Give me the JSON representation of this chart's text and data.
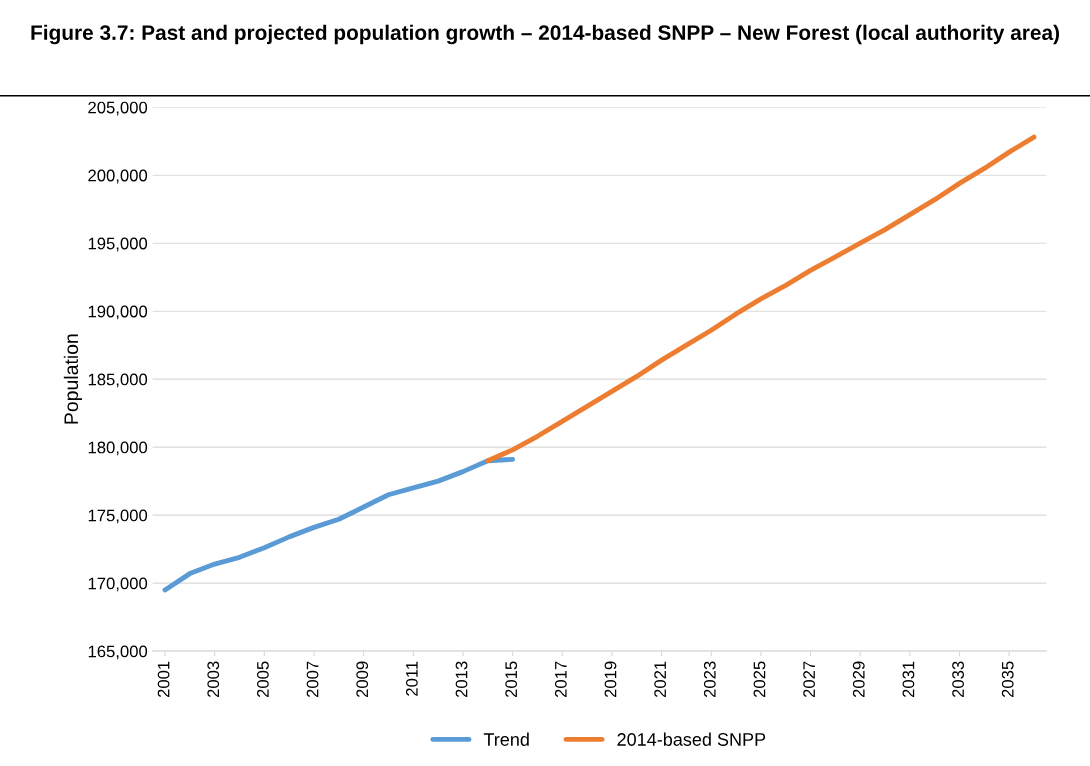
{
  "chart_data": {
    "type": "line",
    "title": "Figure 3.7: Past and projected population growth – 2014-based SNPP – New Forest (local authority area)",
    "ylabel": "Population",
    "xlim": [
      2000.5,
      2036.5
    ],
    "xticks": [
      2001,
      2003,
      2005,
      2007,
      2009,
      2011,
      2013,
      2015,
      2017,
      2019,
      2021,
      2023,
      2025,
      2027,
      2029,
      2031,
      2033,
      2035
    ],
    "ylim": [
      165000,
      205000
    ],
    "yticks": [
      {
        "value": 165000,
        "label": "165,000"
      },
      {
        "value": 170000,
        "label": "170,000"
      },
      {
        "value": 175000,
        "label": "175,000"
      },
      {
        "value": 180000,
        "label": "180,000"
      },
      {
        "value": 185000,
        "label": "185,000"
      },
      {
        "value": 190000,
        "label": "190,000"
      },
      {
        "value": 195000,
        "label": "195,000"
      },
      {
        "value": 200000,
        "label": "200,000"
      },
      {
        "value": 205000,
        "label": "205,000"
      }
    ],
    "grid": "y",
    "legend": "bottom",
    "marker": "none",
    "line_style": "solid",
    "series": [
      {
        "name": "Trend",
        "color": "#5b9bd5",
        "x": [
          2001,
          2002,
          2003,
          2004,
          2005,
          2006,
          2007,
          2008,
          2009,
          2010,
          2011,
          2012,
          2013,
          2014,
          2015
        ],
        "values": [
          169500,
          170700,
          171400,
          171900,
          172600,
          173400,
          174100,
          174700,
          175600,
          176500,
          177000,
          177500,
          178200,
          179000,
          179100
        ]
      },
      {
        "name": "2014-based SNPP",
        "color": "#ed7d31",
        "x": [
          2014,
          2015,
          2016,
          2017,
          2018,
          2019,
          2020,
          2021,
          2022,
          2023,
          2024,
          2025,
          2026,
          2027,
          2028,
          2029,
          2030,
          2031,
          2032,
          2033,
          2034,
          2035,
          2036
        ],
        "values": [
          179000,
          179800,
          180800,
          181900,
          183000,
          184100,
          185200,
          186400,
          187500,
          188600,
          189800,
          190900,
          191900,
          193000,
          194000,
          195000,
          196000,
          197100,
          198200,
          199400,
          200500,
          201700,
          202800
        ]
      }
    ]
  }
}
